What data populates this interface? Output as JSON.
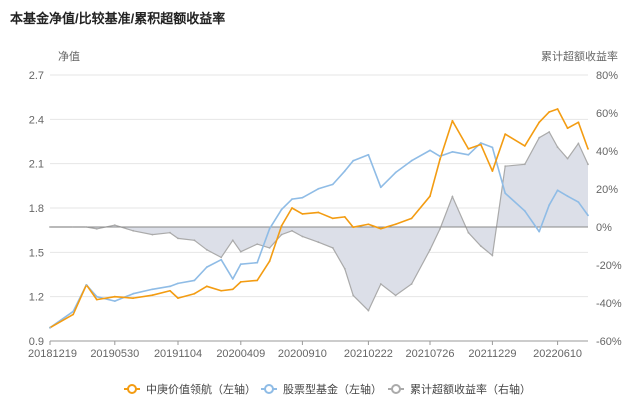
{
  "title": "本基金净值/比较基准/累积超额收益率",
  "chart_data": {
    "type": "line",
    "title": "本基金净值/比较基准/累积超额收益率",
    "ylabel_left": "净值",
    "ylabel_right": "累计超额收益率",
    "ylim_left": [
      0.9,
      2.7
    ],
    "ylim_right": [
      -60,
      80
    ],
    "yticks_left": [
      "0.9",
      "1.2",
      "1.5",
      "1.8",
      "2.1",
      "2.4",
      "2.7"
    ],
    "yticks_right": [
      "-60%",
      "-40%",
      "-20%",
      "0%",
      "20%",
      "40%",
      "60%",
      "80%"
    ],
    "xticks": [
      "20181219",
      "20190530",
      "20191104",
      "20200409",
      "20200910",
      "20210222",
      "20210726",
      "20211229",
      "20220610"
    ],
    "grid": true,
    "legend_position": "bottom",
    "colors": {
      "fund": "#f39c12",
      "benchmark": "#8fbce6",
      "excess": "#aaaaaa",
      "excess_fill": "#dcdfe8"
    },
    "series": [
      {
        "name": "中庚价值领航（左轴）",
        "axis": "left",
        "x": [
          "20181219",
          "20190215",
          "20190320",
          "20190415",
          "20190530",
          "20190715",
          "20190901",
          "20191015",
          "20191104",
          "20191215",
          "20200115",
          "20200220",
          "20200320",
          "20200409",
          "20200520",
          "20200620",
          "20200720",
          "20200815",
          "20200910",
          "20201020",
          "20201125",
          "20201225",
          "20210115",
          "20210222",
          "20210325",
          "20210501",
          "20210610",
          "20210726",
          "20210820",
          "20210920",
          "20211030",
          "20211130",
          "20211229",
          "20220130",
          "20220320",
          "20220425",
          "20220520",
          "20220610",
          "20220705",
          "20220801",
          "20220825"
        ],
        "values": [
          0.99,
          1.08,
          1.28,
          1.18,
          1.2,
          1.19,
          1.21,
          1.24,
          1.19,
          1.22,
          1.27,
          1.24,
          1.25,
          1.3,
          1.31,
          1.44,
          1.68,
          1.8,
          1.76,
          1.77,
          1.73,
          1.74,
          1.67,
          1.69,
          1.66,
          1.69,
          1.73,
          1.88,
          2.13,
          2.39,
          2.2,
          2.23,
          2.05,
          2.3,
          2.22,
          2.38,
          2.45,
          2.47,
          2.34,
          2.38,
          2.2
        ]
      },
      {
        "name": "股票型基金（左轴）",
        "axis": "left",
        "x": [
          "20181219",
          "20190215",
          "20190320",
          "20190415",
          "20190530",
          "20190715",
          "20190901",
          "20191015",
          "20191104",
          "20191215",
          "20200115",
          "20200220",
          "20200320",
          "20200409",
          "20200520",
          "20200620",
          "20200720",
          "20200815",
          "20200910",
          "20201020",
          "20201125",
          "20201225",
          "20210115",
          "20210222",
          "20210325",
          "20210501",
          "20210610",
          "20210726",
          "20210820",
          "20210920",
          "20211030",
          "20211130",
          "20211229",
          "20220130",
          "20220320",
          "20220425",
          "20220520",
          "20220610",
          "20220705",
          "20220801",
          "20220825"
        ],
        "values": [
          0.99,
          1.1,
          1.28,
          1.2,
          1.17,
          1.22,
          1.25,
          1.27,
          1.29,
          1.31,
          1.4,
          1.45,
          1.32,
          1.42,
          1.43,
          1.66,
          1.79,
          1.86,
          1.87,
          1.93,
          1.96,
          2.05,
          2.12,
          2.16,
          1.94,
          2.04,
          2.12,
          2.19,
          2.15,
          2.18,
          2.16,
          2.24,
          2.21,
          1.9,
          1.78,
          1.64,
          1.82,
          1.92,
          1.88,
          1.84,
          1.75
        ]
      },
      {
        "name": "累计超额收益率（右轴）",
        "axis": "right",
        "x": [
          "20181219",
          "20190215",
          "20190320",
          "20190415",
          "20190530",
          "20190715",
          "20190901",
          "20191015",
          "20191104",
          "20191215",
          "20200115",
          "20200220",
          "20200320",
          "20200409",
          "20200520",
          "20200620",
          "20200720",
          "20200815",
          "20200910",
          "20201020",
          "20201125",
          "20201225",
          "20210115",
          "20210222",
          "20210325",
          "20210501",
          "20210610",
          "20210726",
          "20210820",
          "20210920",
          "20211030",
          "20211130",
          "20211229",
          "20220130",
          "20220320",
          "20220425",
          "20220520",
          "20220610",
          "20220705",
          "20220801",
          "20220825"
        ],
        "values": [
          0,
          0,
          0,
          -1,
          1,
          -2,
          -4,
          -3,
          -6,
          -7,
          -12,
          -16,
          -7,
          -13,
          -9,
          -11,
          -4,
          -2,
          -5,
          -8,
          -11,
          -22,
          -36,
          -44,
          -30,
          -36,
          -30,
          -12,
          -1,
          16,
          -3,
          -10,
          -15,
          32,
          33,
          47,
          50,
          42,
          36,
          44,
          33
        ]
      }
    ]
  }
}
